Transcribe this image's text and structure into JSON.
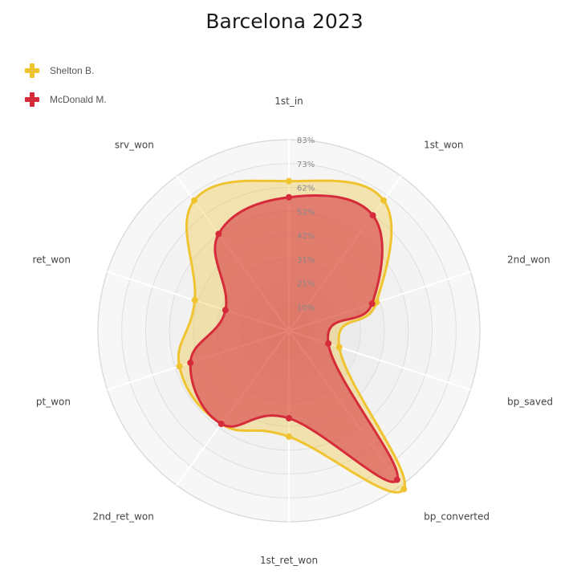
{
  "title": "Barcelona 2023",
  "colors": {
    "shelton": "#f0c330",
    "mcdonald": "#d62b3a",
    "grid": "#ffffff",
    "bg": "#e7e7e7"
  },
  "chart_data": {
    "type": "radar",
    "title": "Barcelona 2023",
    "axes": [
      "1st_in",
      "1st_won",
      "2nd_won",
      "bp_saved",
      "bp_converted",
      "1st_ret_won",
      "2nd_ret_won",
      "pt_won",
      "ret_won",
      "srv_won"
    ],
    "tick_labels": [
      "10%",
      "21%",
      "31%",
      "42%",
      "52%",
      "62%",
      "73%",
      "83%"
    ],
    "range": [
      0,
      83
    ],
    "legend_position": "top-left",
    "series": [
      {
        "name": "Shelton B.",
        "color": "#f0c330",
        "values": [
          65,
          70,
          40,
          23,
          85,
          46,
          50,
          50,
          43,
          70
        ]
      },
      {
        "name": "McDonald M.",
        "color": "#d62b3a",
        "values": [
          58,
          62,
          38,
          18,
          80,
          38,
          50,
          45,
          29,
          52
        ]
      }
    ]
  }
}
